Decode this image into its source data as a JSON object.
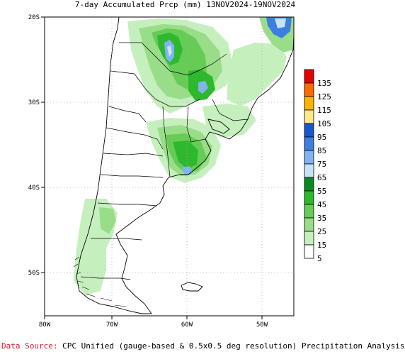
{
  "title": "7-day Accumulated Prcp (mm) 13NOV2024-19NOV2024",
  "footer": {
    "source_label": "Data Source:",
    "source_text": "CPC Unified (gauge-based & 0.5x0.5 deg resolution) Precipitation Analysis"
  },
  "axes": {
    "lat_labels": [
      "20S",
      "30S",
      "40S",
      "50S"
    ],
    "lon_labels": [
      "80W",
      "70W",
      "60W",
      "50W"
    ],
    "lat_range": [
      -20,
      -55
    ],
    "lon_range": [
      -80,
      -45
    ]
  },
  "legend": {
    "levels": [
      "135",
      "125",
      "115",
      "105",
      "95",
      "85",
      "75",
      "65",
      "55",
      "45",
      "35",
      "25",
      "15",
      "5"
    ],
    "colors": [
      "#e60000",
      "#ff6a00",
      "#ffb300",
      "#ffe887",
      "#1955d0",
      "#3c7fe0",
      "#7fb4f0",
      "#c8e2f8",
      "#0a8a1e",
      "#2eb82e",
      "#66cc55",
      "#99dd88",
      "#c6efbe",
      "#ffffff"
    ]
  },
  "colors": {
    "light_green": "#c6efbe",
    "green": "#99dd88",
    "mid_green": "#66cc55",
    "dark_green": "#2eb82e",
    "light_blue": "#c8e2f8",
    "blue": "#7fb4f0"
  }
}
